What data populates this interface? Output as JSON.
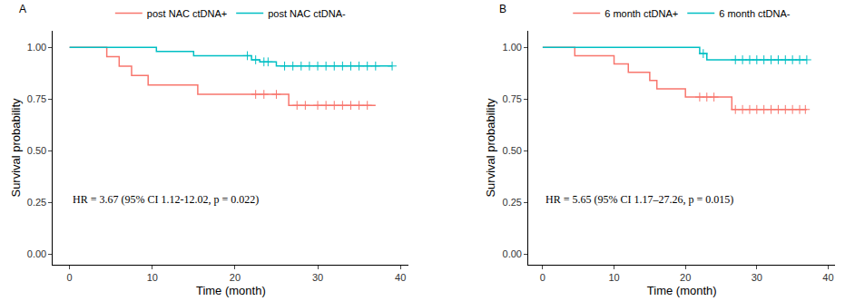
{
  "chart_data": [
    {
      "type": "step",
      "title": "A",
      "x_label": "Time (month)",
      "y_label": "Survival probability",
      "annotation": "HR = 3.67 (95% CI 1.12-12.02, p = 0.022)",
      "xlim": [
        -2,
        41
      ],
      "xticks": [
        0,
        10,
        20,
        30,
        40
      ],
      "ylim": [
        -0.05,
        1.08
      ],
      "yticks": [
        {
          "value": 0,
          "label": "0.00"
        },
        {
          "value": 0.25,
          "label": "0.25"
        },
        {
          "value": 0.5,
          "label": "0.50"
        },
        {
          "value": 0.75,
          "label": "0.75"
        },
        {
          "value": 1,
          "label": "1.00"
        }
      ],
      "grid": false,
      "legend": "top",
      "marker": "plus",
      "series": [
        {
          "name": "post NAC ctDNA+",
          "color": "#F8766D",
          "x": [
            0,
            4.5,
            6,
            7.5,
            9.5,
            15.5,
            26.5,
            37
          ],
          "values": [
            1,
            0.955,
            0.909,
            0.864,
            0.818,
            0.773,
            0.72,
            0.72
          ],
          "censored": {
            "x": [
              22.5,
              23.5,
              25,
              27.5,
              28.5,
              30,
              31,
              32,
              33,
              34,
              35,
              36
            ],
            "values": [
              0.773,
              0.773,
              0.773,
              0.72,
              0.72,
              0.72,
              0.72,
              0.72,
              0.72,
              0.72,
              0.72,
              0.72
            ]
          }
        },
        {
          "name": "post NAC ctDNA-",
          "color": "#00BFC4",
          "x": [
            0,
            10.5,
            15,
            22,
            23,
            25,
            39
          ],
          "values": [
            1,
            0.98,
            0.96,
            0.94,
            0.93,
            0.91,
            0.91
          ],
          "censored": {
            "x": [
              21.5,
              22.5,
              23.5,
              24,
              26,
              27,
              28,
              29,
              30,
              31,
              32,
              33,
              34,
              35,
              36,
              37,
              39
            ],
            "values": [
              0.96,
              0.94,
              0.93,
              0.93,
              0.91,
              0.91,
              0.91,
              0.91,
              0.91,
              0.91,
              0.91,
              0.91,
              0.91,
              0.91,
              0.91,
              0.91,
              0.91
            ]
          }
        }
      ]
    },
    {
      "type": "step",
      "title": "B",
      "x_label": "Time (month)",
      "y_label": "Survival probability",
      "annotation": "HR = 5.65 (95% CI 1.17–27.26, p = 0.015)",
      "xlim": [
        -2,
        41
      ],
      "xticks": [
        0,
        10,
        20,
        30,
        40
      ],
      "ylim": [
        -0.05,
        1.08
      ],
      "yticks": [
        {
          "value": 0,
          "label": "0.00"
        },
        {
          "value": 0.25,
          "label": "0.25"
        },
        {
          "value": 0.5,
          "label": "0.50"
        },
        {
          "value": 0.75,
          "label": "0.75"
        },
        {
          "value": 1,
          "label": "1.00"
        }
      ],
      "grid": false,
      "legend": "top",
      "marker": "plus",
      "series": [
        {
          "name": "6 month ctDNA+",
          "color": "#F8766D",
          "x": [
            0,
            4.5,
            10,
            12,
            15,
            16,
            20,
            26.5,
            37
          ],
          "values": [
            1,
            0.96,
            0.92,
            0.88,
            0.84,
            0.8,
            0.76,
            0.7,
            0.7
          ],
          "censored": {
            "x": [
              22,
              23,
              24,
              27,
              28,
              29,
              30,
              31,
              32,
              33,
              34,
              35,
              36,
              36.8
            ],
            "values": [
              0.76,
              0.76,
              0.76,
              0.7,
              0.7,
              0.7,
              0.7,
              0.7,
              0.7,
              0.7,
              0.7,
              0.7,
              0.7,
              0.7
            ]
          }
        },
        {
          "name": "6 month ctDNA-",
          "color": "#00BFC4",
          "x": [
            0,
            22,
            23,
            37
          ],
          "values": [
            1,
            0.97,
            0.94,
            0.94
          ],
          "censored": {
            "x": [
              22.5,
              27,
              28,
              29,
              30,
              31,
              32,
              33,
              34,
              35,
              36,
              37
            ],
            "values": [
              0.97,
              0.94,
              0.94,
              0.94,
              0.94,
              0.94,
              0.94,
              0.94,
              0.94,
              0.94,
              0.94,
              0.94
            ]
          }
        }
      ]
    }
  ]
}
